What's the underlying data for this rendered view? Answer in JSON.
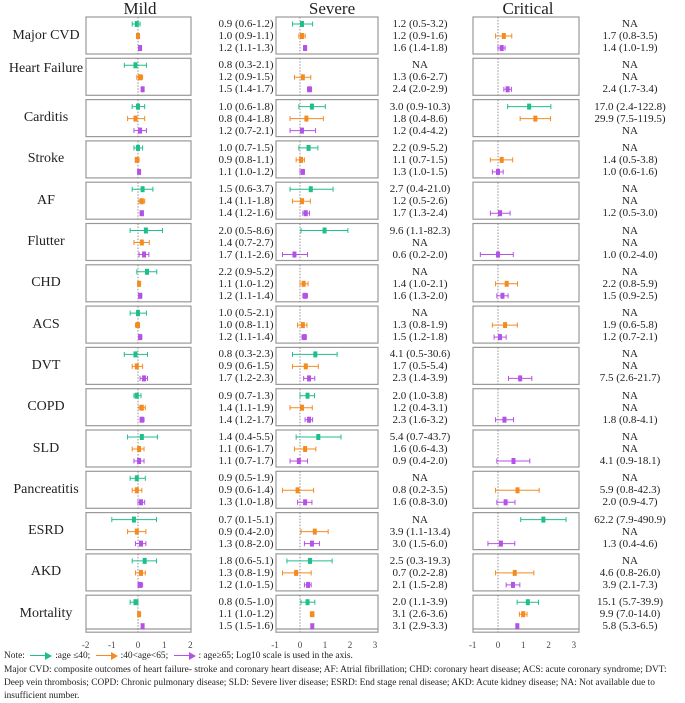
{
  "chart_data": {
    "type": "forest",
    "panels": [
      {
        "key": "mild",
        "title": "Mild",
        "ticks": [
          "-2",
          "-1",
          "0",
          "1",
          "2"
        ],
        "xlim": [
          -2,
          2
        ]
      },
      {
        "key": "severe",
        "title": "Severe",
        "ticks": [
          "-1",
          "0",
          "1",
          "2",
          "3"
        ],
        "xlim": [
          -1,
          3
        ]
      },
      {
        "key": "critical",
        "title": "Critical",
        "ticks": [
          "-1",
          "0",
          "1",
          "2",
          "3"
        ],
        "xlim": [
          -1,
          3
        ]
      }
    ],
    "series": [
      {
        "name": ":age ≤40;",
        "color": "#1fbf8c"
      },
      {
        "name": ":40<age<65;",
        "color": "#f58a1f"
      },
      {
        "name": ": age≥65;",
        "color": "#b452e6"
      }
    ],
    "rows": [
      {
        "label": "Major CVD",
        "mild": [
          "0.9 (0.6-1.2)",
          "1.0 (0.9-1.1)",
          "1.2 (1.1-1.3)"
        ],
        "severe": [
          "1.2 (0.5-3.2)",
          "1.2 (0.9-1.6)",
          "1.6 (1.4-1.8)"
        ],
        "critical": [
          "NA",
          "1.7 (0.8-3.5)",
          "1.4 (1.0-1.9)"
        ]
      },
      {
        "label": "Heart Failure",
        "mild": [
          "0.8 (0.3-2.1)",
          "1.2 (0.9-1.5)",
          "1.5 (1.4-1.7)"
        ],
        "severe": [
          "NA",
          "1.3 (0.6-2.7)",
          "2.4 (2.0-2.9)"
        ],
        "critical": [
          "NA",
          "NA",
          "2.4 (1.7-3.4)"
        ]
      },
      {
        "label": "Carditis",
        "mild": [
          "1.0 (0.6-1.8)",
          "0.8 (0.4-1.8)",
          "1.2 (0.7-2.1)"
        ],
        "severe": [
          "3.0 (0.9-10.3)",
          "1.8 (0.4-8.6)",
          "1.2 (0.4-4.2)"
        ],
        "critical": [
          "17.0 (2.4-122.8)",
          "29.9 (7.5-119.5)",
          "NA"
        ]
      },
      {
        "label": "Stroke",
        "mild": [
          "1.0 (0.7-1.5)",
          "0.9 (0.8-1.1)",
          "1.1 (1.0-1.2)"
        ],
        "severe": [
          "2.2 (0.9-5.2)",
          "1.1 (0.7-1.5)",
          "1.3 (1.0-1.5)"
        ],
        "critical": [
          "NA",
          "1.4 (0.5-3.8)",
          "1.0 (0.6-1.6)"
        ]
      },
      {
        "label": "AF",
        "mild": [
          "1.5 (0.6-3.7)",
          "1.4 (1.1-1.8)",
          "1.4 (1.2-1.6)"
        ],
        "severe": [
          "2.7 (0.4-21.0)",
          "1.2 (0.5-2.6)",
          "1.7 (1.3-2.4)"
        ],
        "critical": [
          "NA",
          "NA",
          "1.2 (0.5-3.0)"
        ]
      },
      {
        "label": "Flutter",
        "mild": [
          "2.0 (0.5-8.6)",
          "1.4 (0.7-2.7)",
          "1.7 (1.1-2.6)"
        ],
        "severe": [
          "9.6 (1.1-82.3)",
          "NA",
          "0.6 (0.2-2.0)"
        ],
        "critical": [
          "NA",
          "NA",
          "1.0 (0.2-4.0)"
        ]
      },
      {
        "label": "CHD",
        "mild": [
          "2.2 (0.9-5.2)",
          "1.1 (1.0-1.2)",
          "1.2 (1.1-1.4)"
        ],
        "severe": [
          "NA",
          "1.4 (1.0-2.1)",
          "1.6 (1.3-2.0)"
        ],
        "critical": [
          "NA",
          "2.2 (0.8-5.9)",
          "1.5 (0.9-2.5)"
        ]
      },
      {
        "label": "ACS",
        "mild": [
          "1.0 (0.5-2.1)",
          "1.0 (0.8-1.1)",
          "1.2 (1.1-1.4)"
        ],
        "severe": [
          "NA",
          "1.3 (0.8-1.9)",
          "1.5 (1.2-1.8)"
        ],
        "critical": [
          "NA",
          "1.9 (0.6-5.8)",
          "1.2 (0.7-2.1)"
        ]
      },
      {
        "label": "DVT",
        "mild": [
          "0.8 (0.3-2.3)",
          "0.9 (0.6-1.5)",
          "1.7 (1.2-2.3)"
        ],
        "severe": [
          "4.1 (0.5-30.6)",
          "1.7 (0.5-5.4)",
          "2.3 (1.4-3.9)"
        ],
        "critical": [
          "NA",
          "NA",
          "7.5 (2.6-21.7)"
        ]
      },
      {
        "label": "COPD",
        "mild": [
          "0.9 (0.7-1.3)",
          "1.4 (1.1-1.9)",
          "1.4 (1.2-1.7)"
        ],
        "severe": [
          "2.0 (1.0-3.8)",
          "1.2 (0.4-3.1)",
          "2.3 (1.6-3.2)"
        ],
        "critical": [
          "NA",
          "NA",
          "1.8 (0.8-4.1)"
        ]
      },
      {
        "label": "SLD",
        "mild": [
          "1.4 (0.4-5.5)",
          "1.1 (0.6-1.7)",
          "1.1 (0.7-1.7)"
        ],
        "severe": [
          "5.4 (0.7-43.7)",
          "1.6 (0.6-4.3)",
          "0.9 (0.4-2.0)"
        ],
        "critical": [
          "NA",
          "NA",
          "4.1 (0.9-18.1)"
        ]
      },
      {
        "label": "Pancreatitis",
        "mild": [
          "0.9 (0.5-1.9)",
          "0.9 (0.6-1.4)",
          "1.3 (1.0-1.8)"
        ],
        "severe": [
          "NA",
          "0.8 (0.2-3.5)",
          "1.6 (0.8-3.0)"
        ],
        "critical": [
          "NA",
          "5.9 (0.8-42.3)",
          "2.0 (0.9-4.7)"
        ]
      },
      {
        "label": "ESRD",
        "mild": [
          "0.7 (0.1-5.1)",
          "0.9 (0.4-2.0)",
          "1.3 (0.8-2.0)"
        ],
        "severe": [
          "NA",
          "3.9 (1.1-13.4)",
          "3.0 (1.5-6.0)"
        ],
        "critical": [
          "62.2 (7.9-490.9)",
          "NA",
          "1.3 (0.4-4.6)"
        ]
      },
      {
        "label": "AKD",
        "mild": [
          "1.8 (0.6-5.1)",
          "1.3 (0.8-1.9)",
          "1.2 (1.0-1.5)"
        ],
        "severe": [
          "2.5 (0.3-19.3)",
          "0.7 (0.2-2.8)",
          "2.1 (1.5-2.8)"
        ],
        "critical": [
          "NA",
          "4.6 (0.8-26.0)",
          "3.9 (2.1-7.3)"
        ]
      },
      {
        "label": "Mortality",
        "mild": [
          "0.8 (0.5-1.0)",
          "1.1 (1.0-1.2)",
          "1.5 (1.5-1.6)"
        ],
        "severe": [
          "2.0 (1.1-3.9)",
          "3.1 (2.6-3.6)",
          "3.1 (2.9-3.3)"
        ],
        "critical": [
          "15.1 (5.7-39.9)",
          "9.9 (7.0-14.0)",
          "5.8 (5.3-6.5)"
        ]
      }
    ]
  },
  "note": {
    "prefix": "Note:",
    "suffix": "Log10 scale is used in the axis.",
    "abbreviations": "Major CVD: composite outcomes of heart failure- stroke and coronary heart disease; AF: Atrial fibrillation; CHD: coronary heart disease; ACS: acute coronary syndrome; DVT: Deep vein thrombosis; COPD: Chronic pulmonary disease; SLD: Severe liver disease; ESRD: End stage renal disease; AKD: Acute kidney disease; NA: Not available due to insufficient number."
  }
}
